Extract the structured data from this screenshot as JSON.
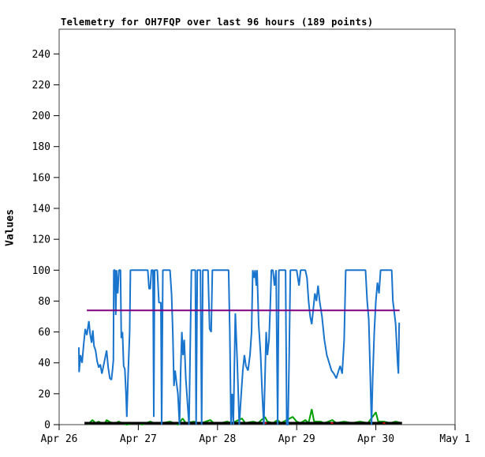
{
  "window": {
    "background": "#ffffff"
  },
  "chart_data": {
    "type": "line",
    "title": "Telemetry for OH7FQP over last 96 hours (189 points)",
    "ylabel": "Values",
    "xlabel": "",
    "ylim": [
      0,
      256
    ],
    "xlim_days": [
      0,
      5
    ],
    "grid": false,
    "legend": "none",
    "frame_color": "#404040",
    "tick_color": "#000000",
    "yticks": [
      0,
      20,
      40,
      60,
      80,
      100,
      120,
      140,
      160,
      180,
      200,
      220,
      240
    ],
    "xticks": [
      {
        "label": "Apr 26",
        "day": 0
      },
      {
        "label": "Apr 27",
        "day": 1
      },
      {
        "label": "Apr 28",
        "day": 2
      },
      {
        "label": "Apr 29",
        "day": 3
      },
      {
        "label": "Apr 30",
        "day": 4
      },
      {
        "label": "May 1",
        "day": 5
      }
    ],
    "series": [
      {
        "name": "telemetry-channel-green",
        "color": "#00A000",
        "width": 2,
        "segments": [
          [
            [
              0.36,
              0
            ],
            [
              0.4,
              2
            ],
            [
              0.42,
              3
            ],
            [
              0.44,
              2
            ],
            [
              0.46,
              1
            ],
            [
              0.5,
              2
            ],
            [
              0.53,
              1
            ],
            [
              0.58,
              1
            ],
            [
              0.6,
              3
            ],
            [
              0.63,
              2
            ],
            [
              0.67,
              1
            ],
            [
              0.72,
              1
            ],
            [
              0.75,
              2
            ],
            [
              0.8,
              1
            ],
            [
              0.85,
              0
            ],
            [
              0.95,
              1
            ],
            [
              1.0,
              1
            ],
            [
              1.05,
              0
            ],
            [
              1.15,
              2
            ],
            [
              1.2,
              1
            ],
            [
              1.3,
              1
            ],
            [
              1.4,
              2
            ],
            [
              1.45,
              1
            ],
            [
              1.5,
              0
            ],
            [
              1.56,
              4
            ],
            [
              1.6,
              1
            ],
            [
              1.7,
              2
            ],
            [
              1.75,
              1
            ],
            [
              1.8,
              1
            ],
            [
              1.91,
              3
            ],
            [
              1.95,
              1
            ],
            [
              2.05,
              1
            ],
            [
              2.12,
              2
            ],
            [
              2.18,
              1
            ],
            [
              2.31,
              4
            ],
            [
              2.35,
              1
            ],
            [
              2.45,
              2
            ],
            [
              2.51,
              1
            ],
            [
              2.6,
              5
            ],
            [
              2.63,
              2
            ],
            [
              2.7,
              1
            ],
            [
              2.76,
              3
            ],
            [
              2.8,
              1
            ],
            [
              2.95,
              5
            ],
            [
              3.0,
              2
            ],
            [
              3.05,
              1
            ],
            [
              3.11,
              3
            ],
            [
              3.15,
              1
            ],
            [
              3.19,
              10
            ],
            [
              3.22,
              2
            ],
            [
              3.3,
              2
            ],
            [
              3.35,
              1
            ],
            [
              3.45,
              3
            ],
            [
              3.5,
              1
            ],
            [
              3.6,
              2
            ],
            [
              3.7,
              1
            ],
            [
              3.8,
              2
            ],
            [
              3.9,
              1
            ],
            [
              4.0,
              8
            ],
            [
              4.03,
              2
            ],
            [
              4.1,
              2
            ],
            [
              4.18,
              1
            ],
            [
              4.25,
              2
            ],
            [
              4.33,
              1
            ]
          ]
        ]
      },
      {
        "name": "telemetry-channel-black",
        "color": "#000000",
        "width": 3,
        "segments": [
          [
            [
              0.32,
              1
            ],
            [
              4.33,
              1
            ]
          ]
        ]
      },
      {
        "name": "telemetry-channel-red",
        "color": "#CC0000",
        "width": 2,
        "segments": [
          [
            [
              2.59,
              1
            ],
            [
              2.62,
              1
            ]
          ],
          [
            [
              3.43,
              1
            ],
            [
              3.46,
              1
            ]
          ],
          [
            [
              4.09,
              1
            ],
            [
              4.12,
              1
            ]
          ]
        ]
      },
      {
        "name": "telemetry-channel-blue",
        "color": "#1874CD",
        "width": 2,
        "segments": [
          [
            [
              0.249,
              50
            ],
            [
              0.252,
              34
            ],
            [
              0.27,
              45
            ],
            [
              0.29,
              40
            ],
            [
              0.31,
              52
            ],
            [
              0.33,
              62
            ],
            [
              0.35,
              58
            ],
            [
              0.375,
              67
            ],
            [
              0.39,
              59
            ],
            [
              0.41,
              53
            ],
            [
              0.425,
              61
            ],
            [
              0.44,
              51
            ],
            [
              0.46,
              48
            ],
            [
              0.48,
              41
            ],
            [
              0.5,
              37
            ],
            [
              0.52,
              39
            ],
            [
              0.54,
              33
            ],
            [
              0.56,
              38
            ],
            [
              0.58,
              43
            ],
            [
              0.6,
              48
            ],
            [
              0.62,
              37
            ],
            [
              0.64,
              30
            ],
            [
              0.66,
              29
            ],
            [
              0.675,
              36
            ],
            [
              0.685,
              42
            ],
            [
              0.69,
              100
            ],
            [
              0.705,
              100
            ],
            [
              0.715,
              71
            ],
            [
              0.725,
              100
            ],
            [
              0.74,
              85
            ],
            [
              0.755,
              100
            ],
            [
              0.775,
              100
            ],
            [
              0.785,
              56
            ],
            [
              0.8,
              60
            ],
            [
              0.815,
              38
            ],
            [
              0.83,
              36
            ],
            [
              0.845,
              20
            ],
            [
              0.855,
              5
            ],
            [
              0.87,
              30
            ],
            [
              0.89,
              60
            ],
            [
              0.9,
              100
            ],
            [
              0.95,
              100
            ],
            [
              1.0,
              100
            ],
            [
              1.05,
              100
            ],
            [
              1.1,
              100
            ],
            [
              1.12,
              100
            ],
            [
              1.135,
              88
            ],
            [
              1.15,
              88
            ],
            [
              1.165,
              100
            ],
            [
              1.185,
              100
            ],
            [
              1.195,
              5
            ],
            [
              1.205,
              100
            ],
            [
              1.24,
              100
            ],
            [
              1.26,
              79
            ],
            [
              1.285,
              79
            ],
            [
              1.295,
              0
            ],
            [
              1.31,
              100
            ],
            [
              1.35,
              100
            ],
            [
              1.4,
              100
            ],
            [
              1.42,
              84
            ],
            [
              1.435,
              60
            ],
            [
              1.45,
              25
            ],
            [
              1.465,
              35
            ],
            [
              1.48,
              28
            ],
            [
              1.5,
              20
            ],
            [
              1.52,
              0
            ],
            [
              1.535,
              35
            ],
            [
              1.55,
              60
            ],
            [
              1.565,
              45
            ],
            [
              1.58,
              55
            ],
            [
              1.6,
              30
            ],
            [
              1.62,
              15
            ],
            [
              1.64,
              0
            ],
            [
              1.655,
              50
            ],
            [
              1.67,
              100
            ],
            [
              1.7,
              100
            ],
            [
              1.72,
              100
            ],
            [
              1.73,
              0
            ],
            [
              1.745,
              100
            ],
            [
              1.77,
              100
            ],
            [
              1.785,
              100
            ],
            [
              1.8,
              0
            ],
            [
              1.815,
              100
            ],
            [
              1.85,
              100
            ],
            [
              1.88,
              100
            ],
            [
              1.9,
              62
            ],
            [
              1.92,
              60
            ],
            [
              1.935,
              100
            ],
            [
              2.0,
              100
            ],
            [
              2.05,
              100
            ],
            [
              2.1,
              100
            ],
            [
              2.14,
              100
            ],
            [
              2.155,
              60
            ],
            [
              2.17,
              0
            ],
            [
              2.185,
              20
            ],
            [
              2.2,
              0
            ],
            [
              2.225,
              72
            ],
            [
              2.25,
              40
            ],
            [
              2.275,
              0
            ],
            [
              2.3,
              20
            ],
            [
              2.32,
              35
            ],
            [
              2.34,
              45
            ],
            [
              2.36,
              38
            ],
            [
              2.385,
              35
            ],
            [
              2.41,
              45
            ],
            [
              2.43,
              60
            ],
            [
              2.445,
              100
            ],
            [
              2.46,
              95
            ],
            [
              2.475,
              100
            ],
            [
              2.49,
              90
            ],
            [
              2.5,
              100
            ],
            [
              2.52,
              65
            ],
            [
              2.545,
              45
            ],
            [
              2.565,
              20
            ],
            [
              2.585,
              0
            ],
            [
              2.6,
              30
            ],
            [
              2.615,
              60
            ],
            [
              2.63,
              45
            ],
            [
              2.65,
              55
            ],
            [
              2.665,
              75
            ],
            [
              2.68,
              100
            ],
            [
              2.7,
              100
            ],
            [
              2.72,
              90
            ],
            [
              2.74,
              100
            ],
            [
              2.76,
              0
            ],
            [
              2.775,
              100
            ],
            [
              2.8,
              100
            ],
            [
              2.83,
              100
            ],
            [
              2.86,
              100
            ],
            [
              2.875,
              0
            ],
            [
              2.89,
              0
            ],
            [
              2.905,
              45
            ],
            [
              2.92,
              100
            ],
            [
              2.95,
              100
            ],
            [
              3.0,
              100
            ],
            [
              3.03,
              90
            ],
            [
              3.05,
              100
            ],
            [
              3.08,
              100
            ],
            [
              3.11,
              100
            ],
            [
              3.13,
              95
            ],
            [
              3.15,
              80
            ],
            [
              3.17,
              70
            ],
            [
              3.19,
              65
            ],
            [
              3.21,
              75
            ],
            [
              3.23,
              85
            ],
            [
              3.25,
              80
            ],
            [
              3.27,
              90
            ],
            [
              3.29,
              80
            ],
            [
              3.32,
              70
            ],
            [
              3.35,
              55
            ],
            [
              3.38,
              45
            ],
            [
              3.41,
              40
            ],
            [
              3.44,
              35
            ],
            [
              3.47,
              33
            ],
            [
              3.5,
              30
            ],
            [
              3.53,
              35
            ],
            [
              3.55,
              38
            ],
            [
              3.575,
              33
            ],
            [
              3.6,
              55
            ],
            [
              3.62,
              100
            ],
            [
              3.7,
              100
            ],
            [
              3.8,
              100
            ],
            [
              3.87,
              100
            ],
            [
              3.89,
              80
            ],
            [
              3.91,
              68
            ],
            [
              3.93,
              30
            ],
            [
              3.945,
              0
            ],
            [
              3.96,
              30
            ],
            [
              3.98,
              60
            ],
            [
              4.0,
              80
            ],
            [
              4.02,
              92
            ],
            [
              4.04,
              85
            ],
            [
              4.06,
              100
            ],
            [
              4.1,
              100
            ],
            [
              4.15,
              100
            ],
            [
              4.2,
              100
            ],
            [
              4.215,
              80
            ],
            [
              4.23,
              74
            ],
            [
              4.25,
              65
            ],
            [
              4.265,
              50
            ],
            [
              4.275,
              40
            ],
            [
              4.285,
              33
            ],
            [
              4.295,
              66
            ]
          ]
        ]
      },
      {
        "name": "telemetry-channel-purple",
        "color": "#7F007F",
        "width": 2,
        "segments": [
          [
            [
              0.35,
              74
            ],
            [
              4.3,
              74
            ]
          ]
        ]
      }
    ]
  }
}
